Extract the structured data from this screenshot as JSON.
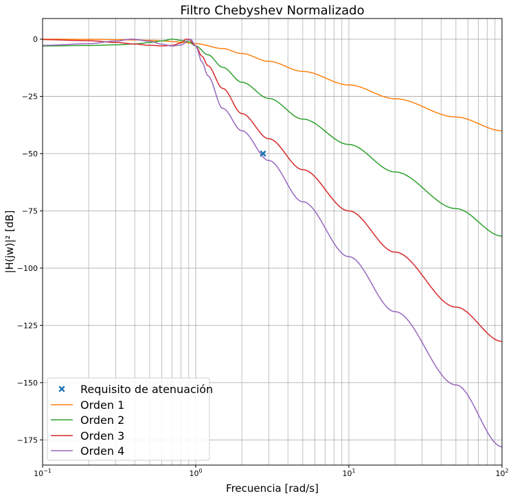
{
  "chart_data": {
    "type": "line",
    "title": "Filtro Chebyshev Normalizado",
    "xlabel": "Frecuencia [rad/s]",
    "ylabel": "|H(jw)|² [dB]",
    "xscale": "log",
    "xlim": [
      0.1,
      100
    ],
    "ylim": [
      -186,
      9
    ],
    "xticks": [
      {
        "value": 0.1,
        "base": "10",
        "exp": "−1"
      },
      {
        "value": 1,
        "base": "10",
        "exp": "0"
      },
      {
        "value": 10,
        "base": "10",
        "exp": "1"
      },
      {
        "value": 100,
        "base": "10",
        "exp": "2"
      }
    ],
    "yticks": [
      {
        "value": 0,
        "label": "0"
      },
      {
        "value": -25,
        "label": "−25"
      },
      {
        "value": -50,
        "label": "−50"
      },
      {
        "value": -75,
        "label": "−75"
      },
      {
        "value": -100,
        "label": "−100"
      },
      {
        "value": -125,
        "label": "−125"
      },
      {
        "value": -150,
        "label": "−150"
      },
      {
        "value": -175,
        "label": "−175"
      }
    ],
    "grid": true,
    "legend_position": "lower-left",
    "marker": {
      "name": "Requisito de atenuación",
      "x": 2.75,
      "y": -50,
      "color": "#1f77b4"
    },
    "series": [
      {
        "name": "Orden 1",
        "color": "#ff7f0e",
        "x": [
          0.1,
          0.2,
          0.3,
          0.4,
          0.5,
          0.6,
          0.7,
          0.8,
          0.9,
          1.0,
          1.5,
          2,
          3,
          5,
          10,
          20,
          50,
          100
        ],
        "y": [
          -0.02,
          -0.09,
          -0.2,
          -0.35,
          -0.54,
          -0.77,
          -1.03,
          -1.32,
          -1.64,
          -1.98,
          -4.1,
          -6.3,
          -9.7,
          -14.1,
          -20.0,
          -26.0,
          -34.0,
          -40.0
        ]
      },
      {
        "name": "Orden 2",
        "color": "#2ca02c",
        "x": [
          0.1,
          0.2,
          0.3,
          0.4,
          0.5,
          0.6,
          0.707,
          0.8,
          0.9,
          1.0,
          1.2,
          1.5,
          2,
          3,
          5,
          10,
          20,
          50,
          100
        ],
        "y": [
          -2.98,
          -2.79,
          -2.5,
          -2.09,
          -1.5,
          -0.78,
          0.0,
          -0.54,
          -1.2,
          -3.0,
          -6.8,
          -12.3,
          -18.8,
          -25.9,
          -34.9,
          -46.0,
          -58.0,
          -74.0,
          -86.0
        ]
      },
      {
        "name": "Orden 3",
        "color": "#d62728",
        "x": [
          0.1,
          0.2,
          0.3,
          0.4,
          0.5,
          0.6,
          0.7,
          0.8,
          0.866,
          0.9,
          1.0,
          1.1,
          1.2,
          1.5,
          2,
          3,
          5,
          10,
          20,
          50,
          100
        ],
        "y": [
          -0.18,
          -0.7,
          -1.42,
          -2.15,
          -2.7,
          -2.95,
          -2.75,
          -1.7,
          0.0,
          -0.15,
          -3.0,
          -7.5,
          -11.6,
          -21.5,
          -32.5,
          -43.5,
          -57.0,
          -75.0,
          -93.0,
          -117.0,
          -132.0
        ]
      },
      {
        "name": "Orden 4",
        "color": "#9467bd",
        "x": [
          0.1,
          0.2,
          0.3,
          0.383,
          0.5,
          0.6,
          0.7,
          0.8,
          0.924,
          1.0,
          1.1,
          1.2,
          1.5,
          2,
          3,
          5,
          10,
          20,
          50,
          100
        ],
        "y": [
          -2.72,
          -2.0,
          -0.85,
          0.0,
          -0.9,
          -2.2,
          -3.0,
          -2.6,
          0.0,
          -3.0,
          -10.0,
          -16.0,
          -30.2,
          -40.0,
          -53.0,
          -71.0,
          -95.0,
          -119.0,
          -151.0,
          -178.0
        ]
      }
    ]
  }
}
